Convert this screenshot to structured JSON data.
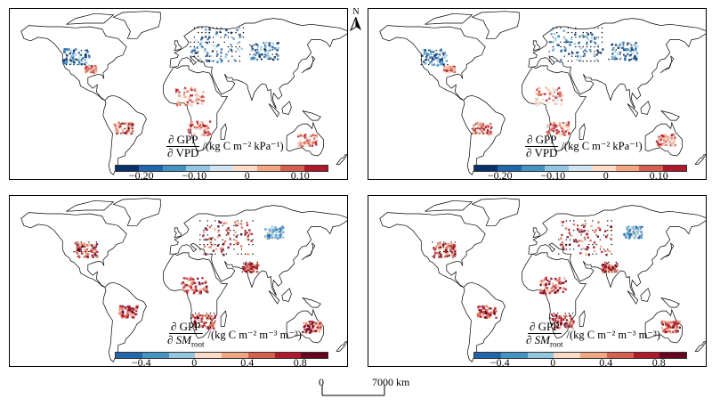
{
  "panels": [
    {
      "id": "top-left",
      "label_num": "∂ GPP",
      "label_den": "∂ VPD",
      "units": "/(kg C m⁻² kPa⁻¹)",
      "ticks": [
        "−0.20",
        "−0.10",
        "0",
        "0.10"
      ],
      "tick_values": [
        -0.2,
        -0.1,
        0,
        0.1
      ],
      "range": [
        -0.25,
        0.15
      ],
      "colors": [
        "#08306b",
        "#2166ac",
        "#4393c3",
        "#92c5de",
        "#d1e5f0",
        "#fddbc7",
        "#f4a582",
        "#d6604d",
        "#b2182b"
      ]
    },
    {
      "id": "top-right",
      "label_num": "∂ GPP",
      "label_den": "∂ VPD",
      "units": "/(kg C m⁻² kPa⁻¹)",
      "ticks": [
        "−0.20",
        "−0.10",
        "0",
        "0.10"
      ],
      "tick_values": [
        -0.2,
        -0.1,
        0,
        0.1
      ],
      "range": [
        -0.25,
        0.15
      ],
      "colors": [
        "#08306b",
        "#2166ac",
        "#4393c3",
        "#92c5de",
        "#d1e5f0",
        "#fddbc7",
        "#f4a582",
        "#d6604d",
        "#b2182b"
      ]
    },
    {
      "id": "bottom-left",
      "label_num": "∂ GPP",
      "label_den": "∂ SM",
      "label_den_sub": "root",
      "units": "/(kg C m⁻² m⁻³ m⁻³)",
      "ticks": [
        "−0.4",
        "0",
        "0.4",
        "0.8"
      ],
      "tick_values": [
        -0.4,
        0,
        0.4,
        0.8
      ],
      "range": [
        -0.6,
        1.0
      ],
      "colors": [
        "#2166ac",
        "#4393c3",
        "#92c5de",
        "#fddbc7",
        "#f4a582",
        "#d6604d",
        "#b2182b",
        "#67001f"
      ]
    },
    {
      "id": "bottom-right",
      "label_num": "∂ GPP",
      "label_den": "∂ SM",
      "label_den_sub": "root",
      "units": "/(kg C m⁻² m⁻³ m⁻³)",
      "ticks": [
        "−0.4",
        "0",
        "0.4",
        "0.8"
      ],
      "tick_values": [
        -0.4,
        0,
        0.4,
        0.8
      ],
      "range": [
        -0.6,
        1.0
      ],
      "colors": [
        "#2166ac",
        "#4393c3",
        "#92c5de",
        "#fddbc7",
        "#f4a582",
        "#d6604d",
        "#b2182b",
        "#67001f"
      ]
    }
  ],
  "north_label": "N",
  "scalebar": {
    "start_label": "0",
    "end_label": "7000 km"
  }
}
